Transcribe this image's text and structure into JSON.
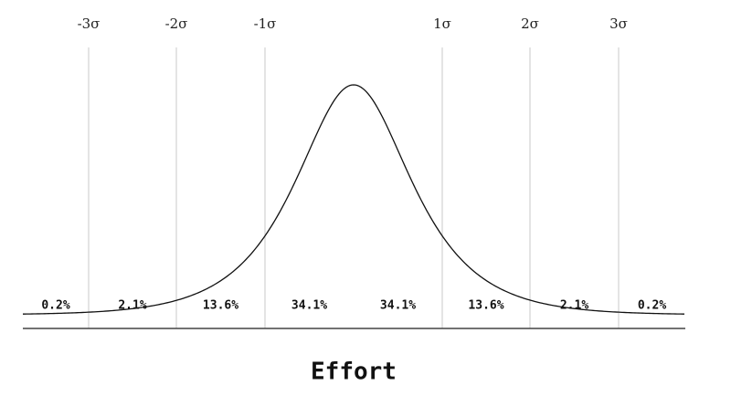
{
  "sigma_labels": [
    "-3σ",
    "-2σ",
    "-1σ",
    "1σ",
    "2σ",
    "3σ"
  ],
  "regions": [
    "0.2%",
    "2.1%",
    "13.6%",
    "34.1%",
    "34.1%",
    "13.6%",
    "2.1%",
    "0.2%"
  ],
  "axis_label": "Effort"
}
